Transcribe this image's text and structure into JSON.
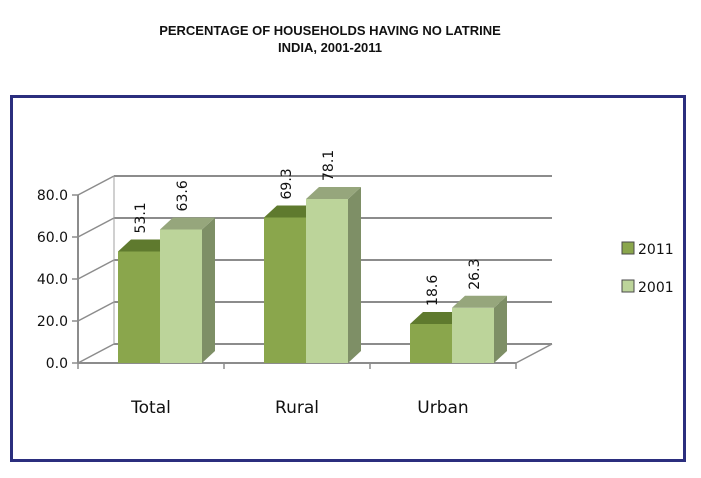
{
  "chart_data": {
    "type": "bar",
    "title": "PERCENTAGE OF HOUSEHOLDS HAVING NO LATRINE",
    "subtitle": "INDIA, 2001-2011",
    "categories": [
      "Total",
      "Rural",
      "Urban"
    ],
    "series": [
      {
        "name": "2011",
        "values": [
          53.1,
          69.3,
          18.6
        ],
        "color": "#8aa64c",
        "side": "#6f8a38",
        "top": "#5f7a2e"
      },
      {
        "name": "2001",
        "values": [
          63.6,
          78.1,
          26.3
        ],
        "color": "#bcd49a",
        "side": "#7e8f66",
        "top": "#96a67c"
      }
    ],
    "value_labels": [
      [
        "53.1",
        "69.3",
        "18.6"
      ],
      [
        "63.6",
        "78.1",
        "26.3"
      ]
    ],
    "yticks": [
      "0.0",
      "20.0",
      "40.0",
      "60.0",
      "80.0"
    ],
    "ylim": [
      0,
      80
    ],
    "gridlines": true,
    "legend_position": "right",
    "xlabel": "",
    "ylabel": ""
  }
}
